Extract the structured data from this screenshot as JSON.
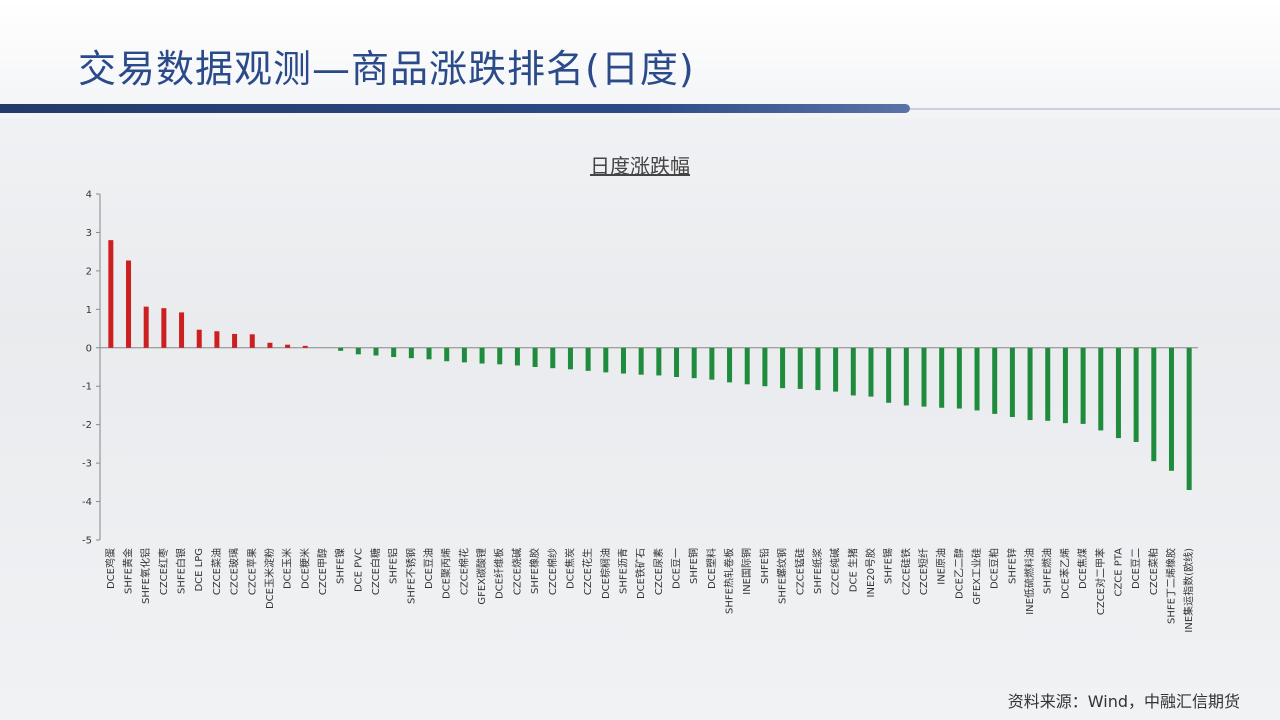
{
  "header": {
    "title": "交易数据观测—商品涨跌排名(日度)"
  },
  "footer": {
    "source": "资料来源：Wind，中融汇信期货"
  },
  "colors": {
    "positive": "#cc1f1f",
    "negative": "#1e8c3c",
    "title": "#2a4a8a"
  },
  "chart_data": {
    "type": "bar",
    "title": "日度涨跌幅",
    "xlabel": "",
    "ylabel": "",
    "ylim": [
      -5,
      4
    ],
    "yticks": [
      4,
      3,
      2,
      1,
      0,
      -1,
      -2,
      -3,
      -4,
      -5
    ],
    "grid": false,
    "categories": [
      "DCE鸡蛋",
      "SHFE黄金",
      "SHFE氧化铝",
      "CZCE红枣",
      "SHFE白银",
      "DCE LPG",
      "CZCE菜油",
      "CZCE玻璃",
      "CZCE苹果",
      "DCE玉米淀粉",
      "DCE玉米",
      "DCE粳米",
      "CZCE甲醇",
      "SHFE镍",
      "DCE PVC",
      "CZCE白糖",
      "SHFE铝",
      "SHFE不锈钢",
      "DCE豆油",
      "DCE聚丙烯",
      "CZCE棉花",
      "GFEX碳酸锂",
      "DCE纤维板",
      "CZCE烧碱",
      "SHFE橡胶",
      "CZCE棉纱",
      "DCE焦炭",
      "CZCE花生",
      "DCE棕榈油",
      "SHFE沥青",
      "DCE铁矿石",
      "CZCE尿素",
      "DCE豆一",
      "SHFE铜",
      "DCE塑料",
      "SHFE热轧卷板",
      "INE国际铜",
      "SHFE铅",
      "SHFE螺纹钢",
      "CZCE锰硅",
      "SHFE纸浆",
      "CZCE纯碱",
      "DCE 生猪",
      "INE20号胶",
      "SHFE锡",
      "CZCE硅铁",
      "CZCE短纤",
      "INE原油",
      "DCE乙二醇",
      "GFEX工业硅",
      "DCE豆粕",
      "SHFE锌",
      "INE低硫燃料油",
      "SHFE燃油",
      "DCE苯乙烯",
      "DCE焦煤",
      "CZCE对二甲苯",
      "CZCE PTA",
      "DCE豆二",
      "CZCE菜粕",
      "SHFE丁二烯橡胶",
      "INE集运指数(欧线)"
    ],
    "values": [
      2.8,
      2.27,
      1.07,
      1.03,
      0.92,
      0.47,
      0.43,
      0.36,
      0.35,
      0.13,
      0.08,
      0.05,
      0.0,
      -0.08,
      -0.17,
      -0.2,
      -0.24,
      -0.27,
      -0.3,
      -0.35,
      -0.38,
      -0.41,
      -0.43,
      -0.46,
      -0.5,
      -0.53,
      -0.56,
      -0.6,
      -0.64,
      -0.67,
      -0.7,
      -0.72,
      -0.76,
      -0.79,
      -0.83,
      -0.9,
      -0.95,
      -1.0,
      -1.05,
      -1.07,
      -1.1,
      -1.14,
      -1.24,
      -1.27,
      -1.43,
      -1.5,
      -1.53,
      -1.56,
      -1.58,
      -1.63,
      -1.72,
      -1.8,
      -1.88,
      -1.9,
      -1.96,
      -1.98,
      -2.15,
      -2.35,
      -2.45,
      -2.95,
      -3.2,
      -3.7
    ]
  }
}
